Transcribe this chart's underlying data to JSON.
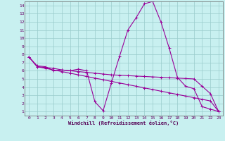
{
  "xlabel": "Windchill (Refroidissement éolien,°C)",
  "bg_color": "#c8f0f0",
  "line_color": "#990099",
  "grid_color": "#99cccc",
  "xlim": [
    -0.5,
    23.5
  ],
  "ylim": [
    0.5,
    14.5
  ],
  "xticks": [
    0,
    1,
    2,
    3,
    4,
    5,
    6,
    7,
    8,
    9,
    10,
    11,
    12,
    13,
    14,
    15,
    16,
    17,
    18,
    19,
    20,
    21,
    22,
    23
  ],
  "yticks": [
    1,
    2,
    3,
    4,
    5,
    6,
    7,
    8,
    9,
    10,
    11,
    12,
    13,
    14
  ],
  "series0": [
    7.7,
    6.6,
    6.5,
    6.0,
    6.1,
    6.0,
    6.2,
    6.0,
    2.2,
    1.1,
    4.5,
    7.8,
    11.0,
    12.5,
    14.2,
    14.5,
    12.0,
    8.8,
    5.2,
    4.1,
    3.8,
    1.6,
    1.3,
    1.0
  ],
  "series1": [
    7.7,
    6.5,
    6.4,
    6.3,
    6.1,
    6.0,
    5.9,
    5.8,
    5.7,
    5.6,
    5.5,
    5.45,
    5.4,
    5.35,
    5.3,
    5.25,
    5.2,
    5.15,
    5.1,
    5.05,
    5.0,
    4.1,
    3.2,
    1.0
  ],
  "series2": [
    7.7,
    6.5,
    6.3,
    6.1,
    5.9,
    5.7,
    5.5,
    5.3,
    5.1,
    4.9,
    4.7,
    4.5,
    4.3,
    4.1,
    3.9,
    3.7,
    3.5,
    3.3,
    3.1,
    2.9,
    2.7,
    2.5,
    2.3,
    1.0
  ],
  "linewidth": 0.8,
  "markersize": 2.5
}
